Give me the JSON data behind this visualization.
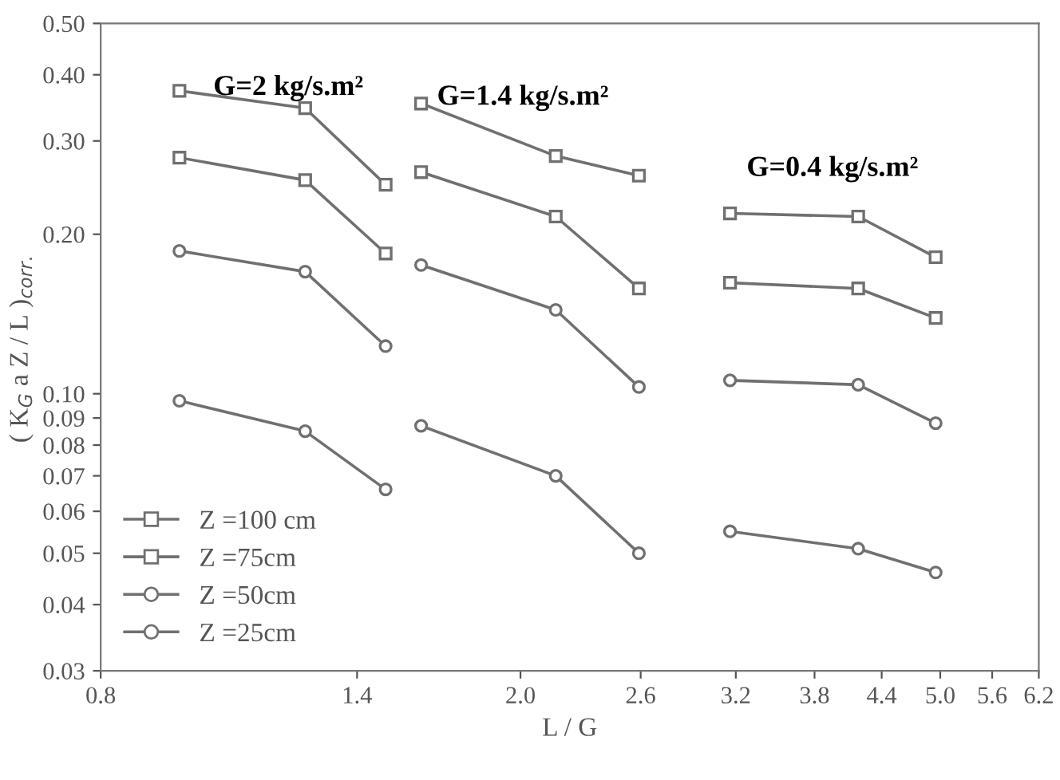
{
  "chart_data": {
    "type": "line",
    "xlabel": "L / G",
    "ylabel": "( K$_{G}$ a Z / L )$_{corr.}$",
    "log": "xy",
    "grid": false,
    "legend": "bottom left",
    "line_style": "solid",
    "xlim": [
      0.8,
      6.2
    ],
    "xticks": [
      0.8,
      1.4,
      {
        "value": 2.0,
        "label": "2.0"
      },
      2.6,
      3.2,
      3.8,
      4.4,
      {
        "value": 5.0,
        "label": "5.0"
      },
      5.6,
      6.2
    ],
    "ylim": [
      0.03,
      0.5
    ],
    "yticks": [
      0.03,
      0.04,
      0.05,
      0.06,
      0.07,
      0.08,
      0.09,
      {
        "value": 0.1,
        "label": "0.10"
      },
      {
        "value": 0.2,
        "label": "0.20"
      },
      {
        "value": 0.3,
        "label": "0.30"
      },
      {
        "value": 0.4,
        "label": "0.40"
      },
      {
        "value": 0.5,
        "label": "0.50"
      }
    ],
    "series": [
      {
        "name": "Z =100 cm",
        "color": "#707070",
        "marker": "square",
        "x": [
          0.95,
          1.25,
          1.49,
          null,
          1.61,
          2.16,
          2.59,
          null,
          3.16,
          4.18,
          4.95
        ],
        "values": [
          0.373,
          0.346,
          0.248,
          null,
          0.353,
          0.281,
          0.258,
          null,
          0.219,
          0.216,
          0.181
        ]
      },
      {
        "name": "Z =75cm",
        "color": "#707070",
        "marker": "square",
        "x": [
          0.95,
          1.25,
          1.49,
          null,
          1.61,
          2.16,
          2.59,
          null,
          3.16,
          4.18,
          4.95
        ],
        "values": [
          0.279,
          0.253,
          0.184,
          null,
          0.262,
          0.216,
          0.158,
          null,
          0.162,
          0.158,
          0.139
        ]
      },
      {
        "name": "Z =50cm",
        "color": "#707070",
        "marker": "circle",
        "x": [
          0.95,
          1.25,
          1.49,
          null,
          1.61,
          2.16,
          2.59,
          null,
          3.16,
          4.18,
          4.95
        ],
        "values": [
          0.186,
          0.17,
          0.123,
          null,
          0.175,
          0.144,
          0.103,
          null,
          0.106,
          0.104,
          0.088
        ]
      },
      {
        "name": "Z =25cm",
        "color": "#707070",
        "marker": "circle",
        "x": [
          0.95,
          1.25,
          1.49,
          null,
          1.61,
          2.16,
          2.59,
          null,
          3.16,
          4.18,
          4.95
        ],
        "values": [
          0.097,
          0.085,
          0.066,
          null,
          0.087,
          0.07,
          0.05,
          null,
          0.055,
          0.051,
          0.046
        ]
      }
    ],
    "annotations": [
      "G=2 kg/s.m²",
      "G=1.4 kg/s.m²",
      "G=0.4 kg/s.m²"
    ]
  }
}
